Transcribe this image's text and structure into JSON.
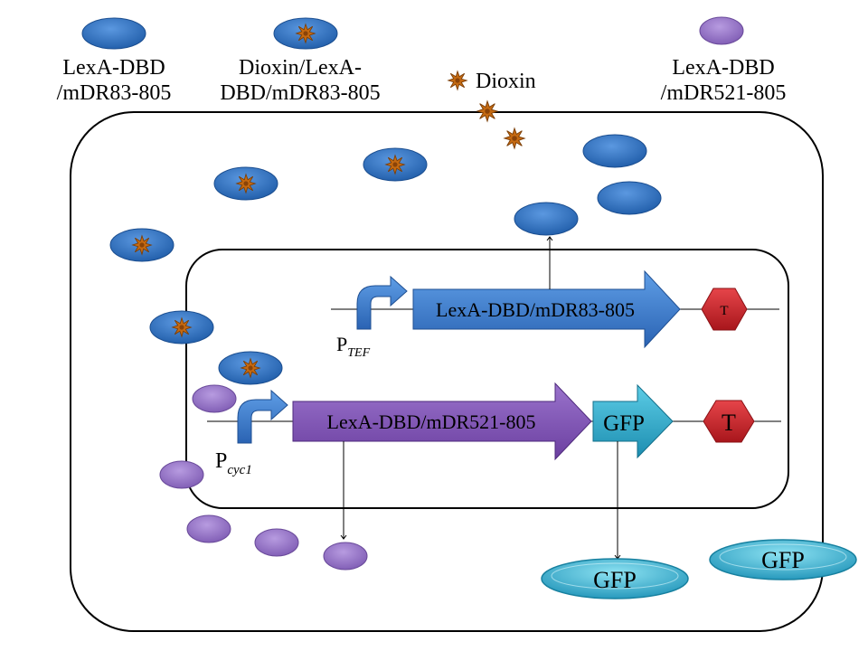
{
  "legend": {
    "lexa_83": {
      "line1": "LexA-DBD",
      "line2": "/mDR83-805"
    },
    "complex": {
      "line1": "Dioxin/LexA-",
      "line2": "DBD/mDR83-805"
    },
    "dioxin": "Dioxin",
    "lexa_521": {
      "line1": "LexA-DBD",
      "line2": "/mDR521-805"
    }
  },
  "construct1": {
    "promoter": {
      "base": "P",
      "subscript": "TEF"
    },
    "gene": "LexA-DBD/mDR83-805",
    "terminator": "T"
  },
  "construct2": {
    "promoter": {
      "base": "P",
      "subscript": "cyc1"
    },
    "gene": "LexA-DBD/mDR521-805",
    "reporter": "GFP",
    "terminator": "T"
  },
  "products": {
    "gfp_1": "GFP",
    "gfp_2": "GFP"
  },
  "colors": {
    "blue_protein": "#2f6fc0",
    "purple_protein": "#8e6bbf",
    "purple_arrow": "#7c4fae",
    "gfp_cyan": "#31a6c6",
    "terminator_red": "#c6262c",
    "dioxin_brown": "#c56a12"
  }
}
